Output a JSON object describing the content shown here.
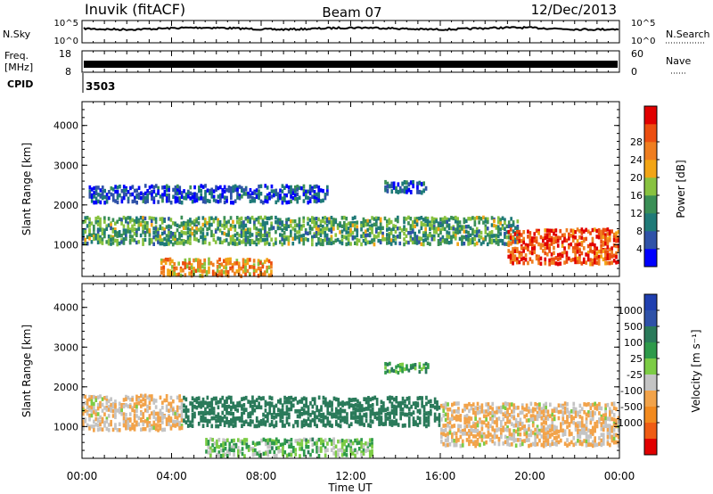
{
  "header": {
    "station": "Inuvik (fitACF)",
    "beam": "Beam 07",
    "date": "12/Dec/2013"
  },
  "noise_panel": {
    "left_label": "N.Sky",
    "right_label": "N.Search",
    "left_ticks": [
      "10^5",
      "10^0"
    ],
    "right_ticks": [
      "10^5",
      "10^0"
    ]
  },
  "freq_panel": {
    "left_label_line1": "Freq.",
    "left_label_line2": "[MHz]",
    "right_label": "Nave",
    "left_ticks": [
      "18",
      "8"
    ],
    "right_ticks": [
      "60",
      "0"
    ]
  },
  "cpid": {
    "label": "CPID",
    "value": "3503"
  },
  "colors": {
    "power": [
      "#0000ff",
      "#2f52a8",
      "#1f7a78",
      "#3a8f56",
      "#88c240",
      "#f2a516",
      "#ef7e20",
      "#ec4e10",
      "#e10000"
    ],
    "velocity": [
      "#e10000",
      "#ef5c14",
      "#f28a1e",
      "#f2a34a",
      "#c4c4c4",
      "#7ccc45",
      "#2e9a4a",
      "#2a7a5a",
      "#2f52a8",
      "#1f3fb0"
    ]
  },
  "chart_data": [
    {
      "type": "heatmap",
      "name": "power",
      "xlabel": "",
      "ylabel": "Slant Range [km]",
      "ylim": [
        200,
        4600
      ],
      "yticks": [
        "1000",
        "2000",
        "3000",
        "4000"
      ],
      "colorbar": {
        "label": "Power [dB]",
        "range": [
          0,
          32
        ],
        "ticks": [
          "4",
          "8",
          "12",
          "16",
          "20",
          "24",
          "28"
        ]
      },
      "bands": [
        {
          "x_start": 0,
          "x_end": 19.5,
          "range_low": 1000,
          "range_high": 1700,
          "value": 14
        },
        {
          "x_start": 0.3,
          "x_end": 11,
          "range_low": 2050,
          "range_high": 2500,
          "value": 6
        },
        {
          "x_start": 3.5,
          "x_end": 8.5,
          "range_low": 200,
          "range_high": 650,
          "value": 24
        },
        {
          "x_start": 19,
          "x_end": 24,
          "range_low": 500,
          "range_high": 1400,
          "value": 30
        },
        {
          "x_start": 13.5,
          "x_end": 15.5,
          "range_low": 2300,
          "range_high": 2600,
          "value": 8
        }
      ]
    },
    {
      "type": "heatmap",
      "name": "velocity",
      "xlabel": "Time UT",
      "ylabel": "Slant Range [km]",
      "ylim": [
        200,
        4600
      ],
      "yticks": [
        "1000",
        "2000",
        "3000",
        "4000"
      ],
      "xticks": [
        "00:00",
        "04:00",
        "08:00",
        "12:00",
        "16:00",
        "20:00",
        "00:00"
      ],
      "xlim": [
        0,
        24
      ],
      "colorbar": {
        "label": "Velocity [m s⁻¹]",
        "ticks": [
          "1000",
          "500",
          "100",
          "25",
          "-25",
          "-100",
          "-500",
          "-1000"
        ]
      },
      "bands": [
        {
          "x_start": 0,
          "x_end": 4.5,
          "range_low": 900,
          "range_high": 1800,
          "value": -100
        },
        {
          "x_start": 4.5,
          "x_end": 16,
          "range_low": 1000,
          "range_high": 1750,
          "value": 300
        },
        {
          "x_start": 16,
          "x_end": 24,
          "range_low": 500,
          "range_high": 1600,
          "value": -100
        },
        {
          "x_start": 13.5,
          "x_end": 15.5,
          "range_low": 2350,
          "range_high": 2600,
          "value": 60
        },
        {
          "x_start": 5.5,
          "x_end": 13,
          "range_low": 250,
          "range_high": 700,
          "value": 15
        }
      ]
    }
  ]
}
